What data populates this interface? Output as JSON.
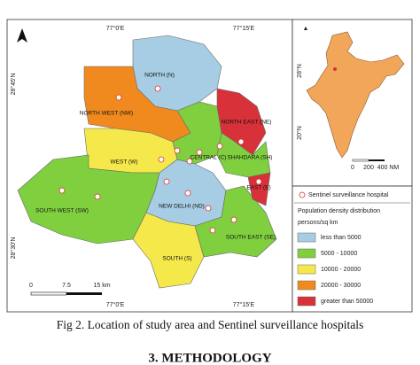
{
  "map": {
    "coords": {
      "lon1": "77°0'E",
      "lon2": "77°15'E",
      "lat1": "28°45'N",
      "lat2": "28°30'N"
    },
    "districts": [
      {
        "label": "NORTH (N)",
        "color": "#a6cde3"
      },
      {
        "label": "NORTH WEST (NW)",
        "color": "#f08a1f"
      },
      {
        "label": "WEST (W)",
        "color": "#f5e84a"
      },
      {
        "label": "SOUTH WEST (SW)",
        "color": "#7fcf3f"
      },
      {
        "label": "CENTRAL (C)",
        "color": "#7fcf3f"
      },
      {
        "label": "NEW DELHI (ND)",
        "color": "#a6cde3"
      },
      {
        "label": "SOUTH (S)",
        "color": "#f5e84a"
      },
      {
        "label": "SOUTH EAST (SE)",
        "color": "#7fcf3f"
      },
      {
        "label": "NORTH EAST (NE)",
        "color": "#d9313a"
      },
      {
        "label": "SHAHDARA (SH)",
        "color": "#7fcf3f"
      },
      {
        "label": "EAST (E)",
        "color": "#d9313a"
      }
    ],
    "scale": [
      "0",
      "7.5",
      "15 km"
    ],
    "inset": {
      "scale": [
        "0",
        "200",
        "400 NM"
      ],
      "lat1": "28°N",
      "lat2": "20°N",
      "color": "#f2a65a"
    },
    "legend": {
      "hospital": "Sentinel surveillance hospital",
      "title": "Population density distribution",
      "unit": "persons/sq km",
      "items": [
        {
          "label": "less than 5000",
          "color": "#a6cde3"
        },
        {
          "label": "5000 - 10000",
          "color": "#7fcf3f"
        },
        {
          "label": "10000 - 20000",
          "color": "#f5e84a"
        },
        {
          "label": "20000 - 30000",
          "color": "#f08a1f"
        },
        {
          "label": "greater than 50000",
          "color": "#d9313a"
        }
      ]
    }
  },
  "caption": "Fig 2. Location of study area and Sentinel surveillance hospitals",
  "section": "3. METHODOLOGY"
}
